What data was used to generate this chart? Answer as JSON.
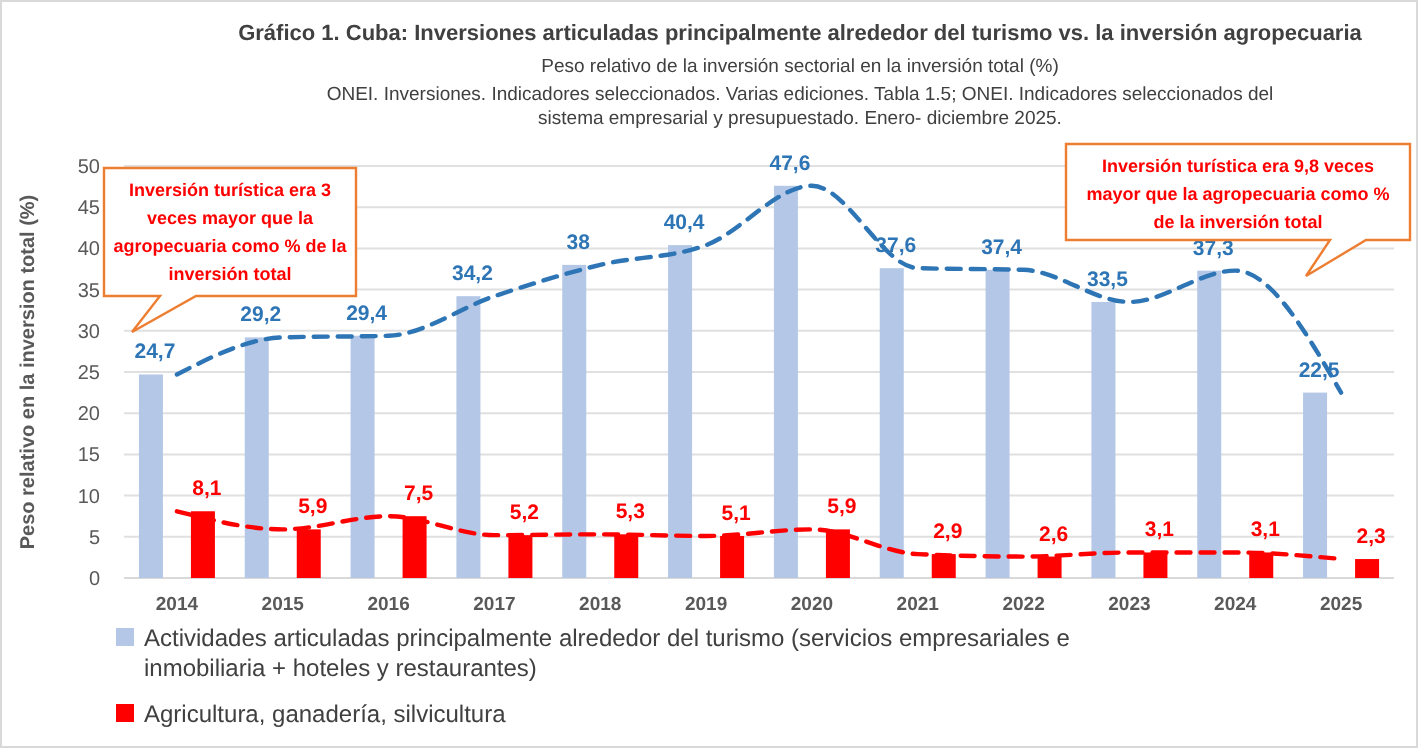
{
  "chart_data": {
    "type": "bar",
    "title": "Gráfico 1. Cuba: Inversiones articuladas principalmente alrededor del turismo vs. la inversión agropecuaria",
    "subtitle": "Peso relativo de la inversión sectorial en la inversión total (%)",
    "ylabel": "Peso relativo en la inversion total (%)",
    "categories": [
      "2014",
      "2015",
      "2016",
      "2017",
      "2018",
      "2019",
      "2020",
      "2021",
      "2022",
      "2023",
      "2024",
      "2025"
    ],
    "series": [
      {
        "name": "Actividades articuladas principalmente alrededor del turismo (servicios empresariales e inmobiliaria  + hoteles y restaurantes)",
        "color": "#b4c7e7",
        "values": [
          24.7,
          29.2,
          29.4,
          34.2,
          38,
          40.4,
          47.6,
          37.6,
          37.4,
          33.5,
          37.3,
          22.5
        ],
        "value_labels": [
          "24,7",
          "29,2",
          "29,4",
          "34,2",
          "38",
          "40,4",
          "47,6",
          "37,6",
          "37,4",
          "33,5",
          "37,3",
          "22,5"
        ]
      },
      {
        "name": "Agricultura, ganadería, silvicultura",
        "color": "#ff0000",
        "values": [
          8.1,
          5.9,
          7.5,
          5.2,
          5.3,
          5.1,
          5.9,
          2.9,
          2.6,
          3.1,
          3.1,
          2.3
        ],
        "value_labels": [
          "8,1",
          "5,9",
          "7,5",
          "5,2",
          "5,3",
          "5,1",
          "5,9",
          "2,9",
          "2,6",
          "3,1",
          "3,1",
          "2,3"
        ]
      },
      {
        "type": "line",
        "color": "#2e75b6",
        "line_style": "dashed",
        "values": [
          24.7,
          29.2,
          29.4,
          34.2,
          38,
          40.4,
          47.6,
          37.6,
          37.4,
          33.5,
          37.3,
          22.5
        ]
      },
      {
        "type": "line",
        "color": "#ff0000",
        "line_style": "dashed",
        "values": [
          8.1,
          5.9,
          7.5,
          5.2,
          5.3,
          5.1,
          5.9,
          2.9,
          2.6,
          3.1,
          3.1,
          2.3
        ]
      }
    ],
    "ylim": [
      0,
      50
    ],
    "yticks": [
      0,
      5,
      10,
      15,
      20,
      25,
      30,
      35,
      40,
      45,
      50
    ],
    "grid": "y",
    "legend": "bottom",
    "annotations": [
      "ONEI. Inversiones. Indicadores seleccionados. Varias ediciones. Tabla 1.5; ONEI. Indicadores seleccionados del sistema empresarial y presupuestado. Enero- diciembre 2025.",
      "Inversión turística era 3 veces mayor que la agropecuaria como % de la inversión total",
      "Inversión turística era 9,8 veces mayor que la agropecuaria como % de la inversión total"
    ]
  }
}
